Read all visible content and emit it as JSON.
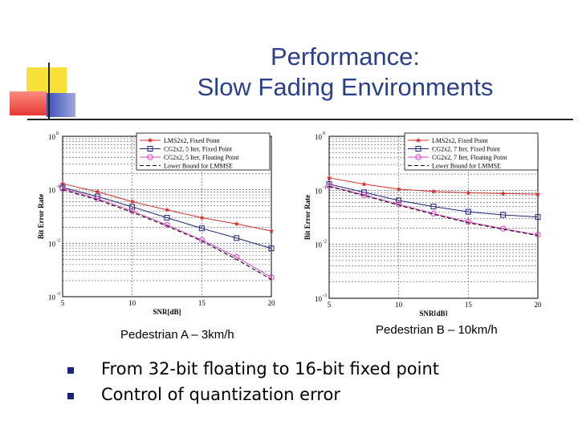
{
  "slide": {
    "title_line1": "Performance:",
    "title_line2": "Slow Fading Environments",
    "accent_colors": {
      "yellow": "#f7e03a",
      "red": "#e53935",
      "blue": "#3a4fb8",
      "title": "#2a3f8e"
    },
    "bullets": [
      "From 32-bit floating to 16-bit fixed point",
      "Control of quantization error"
    ]
  },
  "chart_data": [
    {
      "type": "line",
      "caption": "Pedestrian A – 3km/h",
      "xlabel": "SNR[dB]",
      "ylabel": "Bit Error Rate",
      "xlim": [
        5,
        20
      ],
      "ylim": [
        0.001,
        1
      ],
      "yscale": "log",
      "xticks": [
        "5",
        "10",
        "15",
        "20"
      ],
      "yticks": [
        {
          "base": "10",
          "exp": "0"
        },
        {
          "base": "10",
          "exp": "-1"
        },
        {
          "base": "10",
          "exp": "-2"
        },
        {
          "base": "10",
          "exp": "-3"
        }
      ],
      "grid": true,
      "legend_position": "top-right",
      "series": [
        {
          "name": "LMS2x2, Fixed Point",
          "color": "#d32f2f",
          "marker": "star",
          "dash": "",
          "x": [
            5,
            7.5,
            10,
            12.5,
            15,
            17.5,
            20
          ],
          "y": [
            0.13,
            0.092,
            0.06,
            0.042,
            0.03,
            0.023,
            0.017
          ]
        },
        {
          "name": "CG2x2, 5 Iter, Fixed Point",
          "color": "#1a237e",
          "marker": "square",
          "dash": "",
          "x": [
            5,
            7.5,
            10,
            12.5,
            15,
            17.5,
            20
          ],
          "y": [
            0.11,
            0.075,
            0.048,
            0.03,
            0.019,
            0.0125,
            0.008
          ]
        },
        {
          "name": "CG2x2, 5 Iter, Floating Point",
          "color": "#e040c0",
          "marker": "circle",
          "dash": "",
          "x": [
            5,
            7.5,
            10,
            12.5,
            15,
            17.5,
            20
          ],
          "y": [
            0.105,
            0.068,
            0.04,
            0.022,
            0.0115,
            0.0055,
            0.0023
          ]
        },
        {
          "name": "Lower Bound for LMMSE",
          "color": "#000000",
          "marker": "none",
          "dash": "5,3",
          "x": [
            5,
            7.5,
            10,
            12.5,
            15,
            17.5,
            20
          ],
          "y": [
            0.1,
            0.065,
            0.038,
            0.021,
            0.011,
            0.005,
            0.0021
          ]
        }
      ]
    },
    {
      "type": "line",
      "caption": "Pedestrian B – 10km/h",
      "xlabel": "SNR[dB]",
      "ylabel": "Bit Error Rate",
      "xlim": [
        5,
        20
      ],
      "ylim": [
        0.001,
        1
      ],
      "yscale": "log",
      "xticks": [
        "5",
        "10",
        "15",
        "20"
      ],
      "yticks": [
        {
          "base": "10",
          "exp": "0"
        },
        {
          "base": "10",
          "exp": "-1"
        },
        {
          "base": "10",
          "exp": "-2"
        },
        {
          "base": "10",
          "exp": "-3"
        }
      ],
      "grid": true,
      "legend_position": "top-right",
      "series": [
        {
          "name": "LMS2x2, Fixed Point",
          "color": "#d32f2f",
          "marker": "star",
          "dash": "",
          "x": [
            5,
            7.5,
            10,
            12.5,
            15,
            17.5,
            20
          ],
          "y": [
            0.17,
            0.13,
            0.105,
            0.095,
            0.09,
            0.087,
            0.085
          ]
        },
        {
          "name": "CG2x2, 7 Iter, Fixed Point",
          "color": "#1a237e",
          "marker": "square",
          "dash": "",
          "x": [
            5,
            7.5,
            10,
            12.5,
            15,
            17.5,
            20
          ],
          "y": [
            0.13,
            0.092,
            0.065,
            0.05,
            0.04,
            0.035,
            0.032
          ]
        },
        {
          "name": "CG2x2, 7 Iter, Floating Point",
          "color": "#e040c0",
          "marker": "circle",
          "dash": "",
          "x": [
            5,
            7.5,
            10,
            12.5,
            15,
            17.5,
            20
          ],
          "y": [
            0.12,
            0.082,
            0.055,
            0.037,
            0.026,
            0.0195,
            0.015
          ]
        },
        {
          "name": "Lower Bound for LMMSE",
          "color": "#000000",
          "marker": "none",
          "dash": "5,3",
          "x": [
            5,
            7.5,
            10,
            12.5,
            15,
            17.5,
            20
          ],
          "y": [
            0.118,
            0.08,
            0.053,
            0.036,
            0.025,
            0.019,
            0.0145
          ]
        }
      ]
    }
  ]
}
